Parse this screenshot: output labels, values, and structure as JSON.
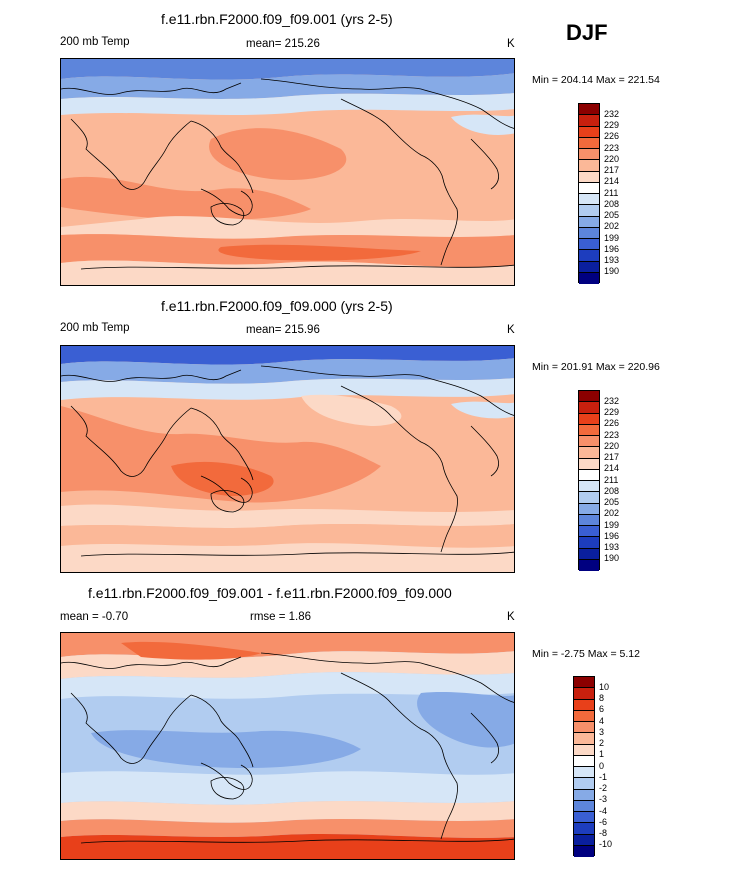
{
  "season": "DJF",
  "panels": [
    {
      "title": "f.e11.rbn.F2000.f09_f09.001 (yrs 2-5)",
      "left": "200 mb Temp",
      "mean": "mean= 215.26",
      "units": "K",
      "minmax": "Min = 204.14 Max = 221.54",
      "levels": [
        "232",
        "229",
        "226",
        "223",
        "220",
        "217",
        "214",
        "211",
        "208",
        "205",
        "202",
        "199",
        "196",
        "193",
        "190"
      ],
      "colors": [
        "#8b0000",
        "#c8200e",
        "#e8401a",
        "#f26a3c",
        "#f7906a",
        "#fbb898",
        "#fcd9c6",
        "#ffffff",
        "#d6e6f7",
        "#b1ccf0",
        "#86aae6",
        "#5d85db",
        "#3a5fd3",
        "#1d3dbe",
        "#0a1f9e",
        "#000080"
      ]
    },
    {
      "title": "f.e11.rbn.F2000.f09_f09.000 (yrs 2-5)",
      "left": "200 mb Temp",
      "mean": "mean= 215.96",
      "units": "K",
      "minmax": "Min = 201.91 Max = 220.96",
      "levels": [
        "232",
        "229",
        "226",
        "223",
        "220",
        "217",
        "214",
        "211",
        "208",
        "205",
        "202",
        "199",
        "196",
        "193",
        "190"
      ],
      "colors": [
        "#8b0000",
        "#c8200e",
        "#e8401a",
        "#f26a3c",
        "#f7906a",
        "#fbb898",
        "#fcd9c6",
        "#ffffff",
        "#d6e6f7",
        "#b1ccf0",
        "#86aae6",
        "#5d85db",
        "#3a5fd3",
        "#1d3dbe",
        "#0a1f9e",
        "#000080"
      ]
    },
    {
      "title": "f.e11.rbn.F2000.f09_f09.001 - f.e11.rbn.F2000.f09_f09.000",
      "left": "mean =  -0.70",
      "mean": "rmse =   1.86",
      "units": "K",
      "minmax": "Min =  -2.75 Max =   5.12",
      "levels": [
        "10",
        "8",
        "6",
        "4",
        "3",
        "2",
        "1",
        "0",
        "-1",
        "-2",
        "-3",
        "-4",
        "-6",
        "-8",
        "-10"
      ],
      "colors": [
        "#8b0000",
        "#c8200e",
        "#e8401a",
        "#f26a3c",
        "#f7906a",
        "#fbb898",
        "#fcd9c6",
        "#ffffff",
        "#d6e6f7",
        "#b1ccf0",
        "#86aae6",
        "#5d85db",
        "#3a5fd3",
        "#1d3dbe",
        "#0a1f9e",
        "#000080"
      ]
    }
  ]
}
